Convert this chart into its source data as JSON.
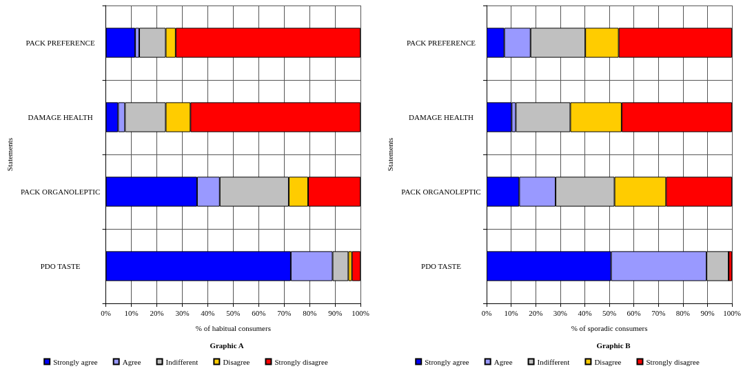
{
  "chart_data": [
    {
      "type": "bar",
      "orientation": "horizontal",
      "stacked": true,
      "title": "Graphic A",
      "xlabel": "% of habitual consumers",
      "ylabel": "Statements",
      "categories": [
        "PACK PREFERENCE",
        "DAMAGE HEALTH",
        "PACK ORGANOLEPTIC",
        "PDO TASTE"
      ],
      "series": [
        {
          "name": "Strongly agree",
          "color": "#0000ff",
          "values": [
            11.5,
            4.8,
            35.8,
            72.6
          ]
        },
        {
          "name": "Agree",
          "color": "#9999ff",
          "values": [
            1.6,
            2.7,
            8.9,
            16.4
          ]
        },
        {
          "name": "Indifferent",
          "color": "#c0c0c0",
          "values": [
            10.4,
            16.0,
            27.1,
            6.2
          ]
        },
        {
          "name": "Disagree",
          "color": "#ffcc00",
          "values": [
            3.9,
            9.7,
            7.6,
            1.4
          ]
        },
        {
          "name": "Strongly disagree",
          "color": "#ff0000",
          "values": [
            72.6,
            66.8,
            20.6,
            3.4
          ]
        }
      ],
      "xlim": [
        0,
        100
      ],
      "xticks": [
        {
          "value": 0,
          "label": "0%"
        },
        {
          "value": 10,
          "label": "10%"
        },
        {
          "value": 20,
          "label": "20%"
        },
        {
          "value": 30,
          "label": "30%"
        },
        {
          "value": 40,
          "label": "40%"
        },
        {
          "value": 50,
          "label": "50%"
        },
        {
          "value": 60,
          "label": "60%"
        },
        {
          "value": 70,
          "label": "70%"
        },
        {
          "value": 80,
          "label": "80%"
        },
        {
          "value": 90,
          "label": "90%"
        },
        {
          "value": 100,
          "label": "100%"
        }
      ],
      "grid": true,
      "legend": "bottom"
    },
    {
      "type": "bar",
      "orientation": "horizontal",
      "stacked": true,
      "title": "Graphic B",
      "xlabel": "% of sporadic consumers",
      "ylabel": "Statements",
      "categories": [
        "PACK PREFERENCE",
        "DAMAGE HEALTH",
        "PACK ORGANOLEPTIC",
        "PDO TASTE"
      ],
      "series": [
        {
          "name": "Strongly agree",
          "color": "#0000ff",
          "values": [
            7.2,
            10.2,
            13.3,
            50.7
          ]
        },
        {
          "name": "Agree",
          "color": "#9999ff",
          "values": [
            10.7,
            1.7,
            14.8,
            38.9
          ]
        },
        {
          "name": "Indifferent",
          "color": "#c0c0c0",
          "values": [
            22.3,
            22.2,
            24.0,
            9.0
          ]
        },
        {
          "name": "Disagree",
          "color": "#ffcc00",
          "values": [
            13.6,
            20.9,
            21.0,
            0
          ]
        },
        {
          "name": "Strongly disagree",
          "color": "#ff0000",
          "values": [
            46.2,
            45.0,
            26.9,
            1.4
          ]
        }
      ],
      "xlim": [
        0,
        100
      ],
      "xticks": [
        {
          "value": 0,
          "label": "0%"
        },
        {
          "value": 10,
          "label": "10%"
        },
        {
          "value": 20,
          "label": "20%"
        },
        {
          "value": 30,
          "label": "30%"
        },
        {
          "value": 40,
          "label": "40%"
        },
        {
          "value": 50,
          "label": "50%"
        },
        {
          "value": 60,
          "label": "60%"
        },
        {
          "value": 70,
          "label": "70%"
        },
        {
          "value": 80,
          "label": "80%"
        },
        {
          "value": 90,
          "label": "90%"
        },
        {
          "value": 100,
          "label": "100%"
        }
      ],
      "grid": true,
      "legend": "bottom"
    }
  ]
}
